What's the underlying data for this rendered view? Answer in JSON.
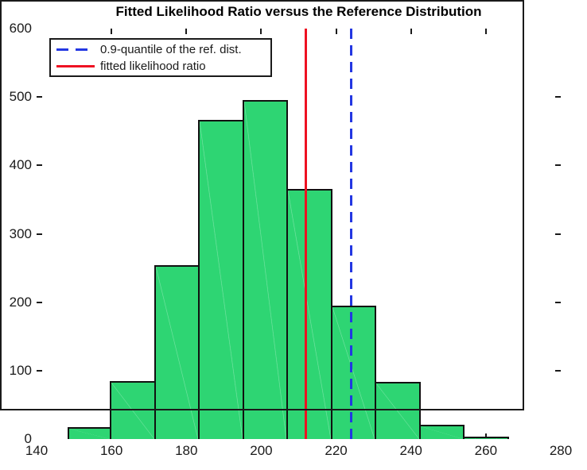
{
  "chart_data": {
    "type": "histogram",
    "title": "Fitted Likelihood Ratio versus the Reference Distribution",
    "xlabel": "",
    "ylabel": "",
    "xlim": [
      140,
      280
    ],
    "ylim": [
      0,
      600
    ],
    "x_ticks": [
      140,
      160,
      180,
      200,
      220,
      240,
      260,
      280
    ],
    "y_ticks": [
      0,
      100,
      200,
      300,
      400,
      500,
      600
    ],
    "grid": false,
    "bin_edges": [
      148.2,
      160.0,
      171.8,
      183.6,
      195.4,
      207.2,
      219.0,
      230.8,
      242.6,
      254.4,
      266.2
    ],
    "counts": [
      17,
      85,
      254,
      467,
      495,
      366,
      195,
      83,
      21,
      3
    ],
    "bar_fill_color": "#2ed573",
    "bar_edge_color": "#111111",
    "axis_color": "#1a1a1a",
    "vlines": [
      {
        "x": 224.1,
        "style": "dashed",
        "color": "#2337e2",
        "name": "quantile-line"
      },
      {
        "x": 212.0,
        "style": "solid",
        "color": "#ee1122",
        "name": "fitted-ratio-line"
      }
    ],
    "legend_position": "northwest"
  },
  "legend": {
    "items": [
      {
        "label": "0.9-quantile of the ref. dist.",
        "color": "#2337e2",
        "dash": true
      },
      {
        "label": "fitted likelihood ratio",
        "color": "#ee1122",
        "dash": false
      }
    ]
  }
}
